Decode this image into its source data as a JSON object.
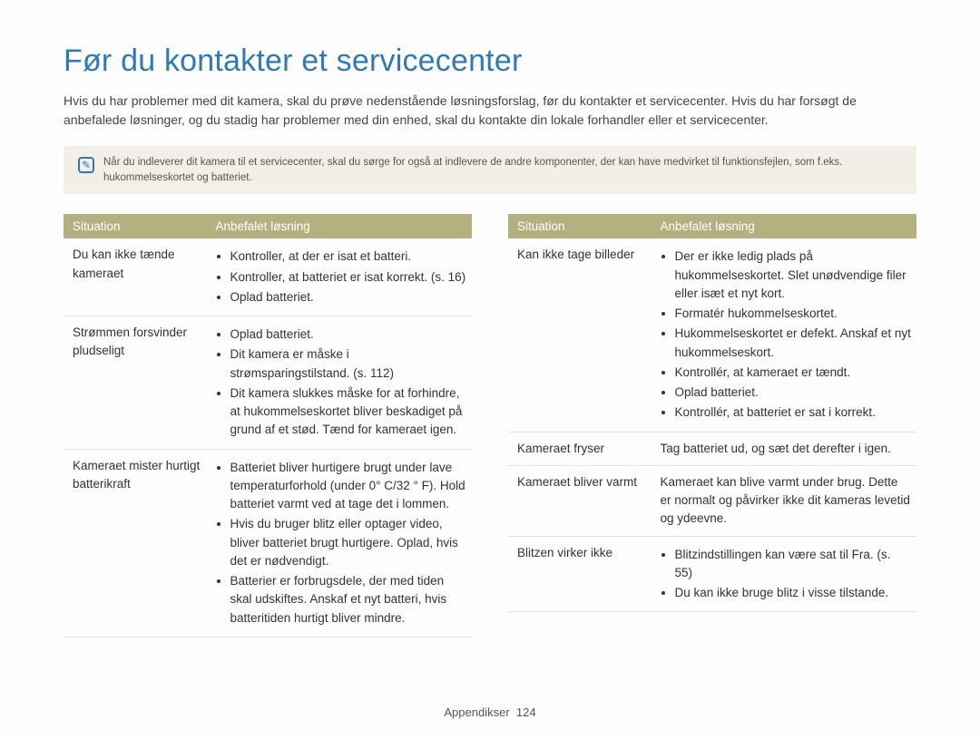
{
  "title": "Før du kontakter et servicecenter",
  "intro": "Hvis du har problemer med dit kamera, skal du prøve nedenstående løsningsforslag, før du kontakter et servicecenter. Hvis du har forsøgt de anbefalede løsninger, og du stadig har problemer med din enhed, skal du kontakte din lokale forhandler eller et servicecenter.",
  "note_icon": "✎",
  "note_text": "Når du indleverer dit kamera til et servicecenter, skal du sørge for også at indlevere de andre komponenter, der kan have medvirket til funktionsfejlen, som f.eks. hukommelseskortet og batteriet.",
  "col_headers": {
    "situation": "Situation",
    "solution": "Anbefalet løsning"
  },
  "left_rows": [
    {
      "situation": "Du kan ikke tænde kameraet",
      "items": [
        "Kontroller, at der er isat et batteri.",
        "Kontroller, at batteriet er isat korrekt. (s. 16)",
        "Oplad batteriet."
      ]
    },
    {
      "situation": "Strømmen forsvinder pludseligt",
      "items": [
        "Oplad batteriet.",
        "Dit kamera er måske i strømsparingstilstand. (s. 112)",
        "Dit kamera slukkes måske for at forhindre, at hukommelseskortet bliver beskadiget på grund af et stød. Tænd for kameraet igen."
      ]
    },
    {
      "situation": "Kameraet mister hurtigt batterikraft",
      "items": [
        "Batteriet bliver hurtigere brugt under lave temperaturforhold (under 0° C/32 ° F). Hold batteriet varmt ved at tage det i lommen.",
        "Hvis du bruger blitz eller optager video, bliver batteriet brugt hurtigere. Oplad, hvis det er nødvendigt.",
        "Batterier er forbrugsdele, der med tiden skal udskiftes. Anskaf et nyt batteri, hvis batteritiden hurtigt bliver mindre."
      ]
    }
  ],
  "right_rows": [
    {
      "situation": "Kan ikke tage billeder",
      "items": [
        "Der er ikke ledig plads på hukommelseskortet. Slet unødvendige filer eller isæt et nyt kort.",
        "Formatér hukommelseskortet.",
        "Hukommelseskortet er defekt. Anskaf et nyt hukommelseskort.",
        "Kontrollér, at kameraet er tændt.",
        "Oplad batteriet.",
        "Kontrollér, at batteriet er sat i korrekt."
      ]
    },
    {
      "situation": "Kameraet fryser",
      "plain": "Tag batteriet ud, og sæt det derefter i igen."
    },
    {
      "situation": "Kameraet bliver varmt",
      "plain": "Kameraet kan blive varmt under brug. Dette er normalt og påvirker ikke dit kameras levetid og ydeevne."
    },
    {
      "situation": "Blitzen virker ikke",
      "items": [
        "Blitzindstillingen kan være sat til Fra. (s. 55)",
        "Du kan ikke bruge blitz i visse tilstande."
      ]
    }
  ],
  "footer_label": "Appendikser",
  "footer_page": "124",
  "colors": {
    "title": "#2e7ab8",
    "header_bg": "#b5b07f",
    "note_bg": "#f3efe6",
    "border": "#e7e4d9"
  }
}
